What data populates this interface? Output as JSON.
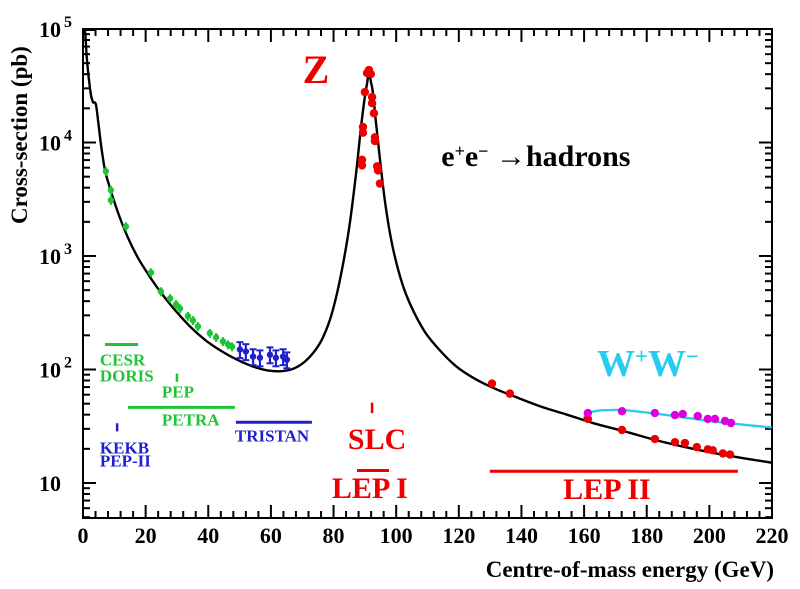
{
  "chart_data": {
    "type": "line",
    "title": "",
    "xlabel": "Centre-of-mass energy (GeV)",
    "ylabel": "Cross-section (pb)",
    "x_axis": {
      "min": 0,
      "max": 220,
      "major_step": 20,
      "minor_step": 4,
      "major_labels": [
        "0",
        "20",
        "40",
        "60",
        "80",
        "100",
        "120",
        "140",
        "160",
        "180",
        "200",
        "220"
      ]
    },
    "y_axis": {
      "scale": "log",
      "min": 4.9,
      "max": 100000,
      "decades": [
        {
          "label_base": "10",
          "label_exp": "5",
          "value": 100000
        },
        {
          "label_base": "10",
          "label_exp": "4",
          "value": 10000
        },
        {
          "label_base": "10",
          "label_exp": "3",
          "value": 1000
        },
        {
          "label_base": "10",
          "label_exp": "2",
          "value": 100
        },
        {
          "label_base": "10",
          "label_exp": "",
          "value": 10
        }
      ]
    },
    "colors": {
      "curve": "#000000",
      "red": "#ee0000",
      "green": "#1fc434",
      "blue": "#2121cc",
      "cyan": "#27ccee",
      "magenta": "#dd00dd",
      "background": "#ffffff"
    },
    "series": [
      {
        "name": "hadrons-theory-curve",
        "style": "curve",
        "color_key": "curve",
        "width": 2.4,
        "points": [
          [
            0.64,
            98000
          ],
          [
            0.96,
            72000
          ],
          [
            1.28,
            53000
          ],
          [
            1.9,
            35500
          ],
          [
            2.55,
            26100
          ],
          [
            3.1,
            23000
          ],
          [
            3.25,
            22500
          ],
          [
            4.1,
            21800
          ],
          [
            4.8,
            15800
          ],
          [
            5.75,
            9530
          ],
          [
            7.0,
            5730
          ],
          [
            8.3,
            4230
          ],
          [
            9.6,
            3240
          ],
          [
            11.8,
            2160
          ],
          [
            14.4,
            1440
          ],
          [
            17.6,
            958
          ],
          [
            21.4,
            652
          ],
          [
            25.5,
            452
          ],
          [
            30.0,
            319
          ],
          [
            34.8,
            230
          ],
          [
            39.6,
            177
          ],
          [
            44.4,
            144
          ],
          [
            49.2,
            122
          ],
          [
            54.0,
            107
          ],
          [
            58.7,
            98.4
          ],
          [
            62.9,
            96.5
          ],
          [
            66.7,
            100.5
          ],
          [
            70.2,
            113.6
          ],
          [
            73.4,
            139
          ],
          [
            76.3,
            184
          ],
          [
            78.9,
            277
          ],
          [
            81.1,
            468
          ],
          [
            83.3,
            932
          ],
          [
            85.2,
            1940
          ],
          [
            87.2,
            5370
          ],
          [
            88.8,
            13900
          ],
          [
            90.0,
            25500
          ],
          [
            90.7,
            33200
          ],
          [
            91.3,
            41500
          ],
          [
            91.9,
            34600
          ],
          [
            92.6,
            27200
          ],
          [
            93.5,
            15500
          ],
          [
            94.8,
            7200
          ],
          [
            96.4,
            3060
          ],
          [
            98.0,
            1600
          ],
          [
            99.9,
            905
          ],
          [
            102.5,
            514
          ],
          [
            105.7,
            319
          ],
          [
            109.5,
            208
          ],
          [
            114.0,
            147
          ],
          [
            119.1,
            107
          ],
          [
            124.8,
            83.8
          ],
          [
            131.2,
            68.4
          ],
          [
            138.2,
            57.2
          ],
          [
            145.9,
            47.5
          ],
          [
            154.2,
            40.3
          ],
          [
            163.1,
            33.6
          ],
          [
            172.7,
            28.6
          ],
          [
            182.9,
            23.9
          ],
          [
            193.7,
            20.3
          ],
          [
            204.6,
            17.7
          ],
          [
            220,
            15.1
          ]
        ]
      },
      {
        "name": "ww-theory-curve",
        "style": "curve",
        "color_key": "cyan",
        "width": 2.4,
        "points": [
          [
            160.0,
            36.5
          ],
          [
            160.3,
            38.9
          ],
          [
            161.5,
            41.5
          ],
          [
            164.0,
            43.2
          ],
          [
            168.0,
            43.9
          ],
          [
            172.0,
            43.9
          ],
          [
            176.2,
            42.9
          ],
          [
            184.2,
            40.4
          ],
          [
            193.7,
            37.2
          ],
          [
            203.3,
            34.3
          ],
          [
            212.9,
            32.2
          ],
          [
            219.9,
            30.9
          ]
        ]
      },
      {
        "name": "low-energy-data-green",
        "style": "points",
        "color_key": "green",
        "marker_r": 3.2,
        "err_frac": 0.09,
        "caps": false,
        "points": [
          [
            7.3,
            5580
          ],
          [
            8.9,
            3800
          ],
          [
            8.9,
            3100
          ],
          [
            13.7,
            1820
          ],
          [
            21.7,
            715
          ],
          [
            24.9,
            486
          ],
          [
            27.8,
            423
          ],
          [
            29.7,
            375
          ],
          [
            31.0,
            345
          ],
          [
            33.5,
            295
          ],
          [
            35.1,
            271
          ],
          [
            36.7,
            240
          ],
          [
            40.5,
            209
          ],
          [
            42.5,
            192
          ],
          [
            44.7,
            177
          ],
          [
            46.3,
            166
          ],
          [
            47.6,
            159
          ]
        ]
      },
      {
        "name": "tristan-data-blue",
        "style": "points",
        "color_key": "blue",
        "marker_r": 3.2,
        "err_frac": 0.16,
        "caps": true,
        "points": [
          [
            50.1,
            150
          ],
          [
            52.0,
            144
          ],
          [
            54.3,
            130
          ],
          [
            56.5,
            127
          ],
          [
            59.7,
            135
          ],
          [
            61.6,
            127
          ],
          [
            63.9,
            130
          ],
          [
            65.1,
            122
          ]
        ]
      },
      {
        "name": "lep-slc-data-red",
        "style": "points",
        "color_key": "red",
        "marker_r": 4.2,
        "err_frac": 0,
        "caps": false,
        "points": [
          [
            89.1,
            7030
          ],
          [
            89.1,
            6280
          ],
          [
            89.4,
            13700
          ],
          [
            89.4,
            12200
          ],
          [
            90.0,
            27800
          ],
          [
            90.7,
            40900
          ],
          [
            91.3,
            43500
          ],
          [
            91.9,
            40100
          ],
          [
            92.3,
            25100
          ],
          [
            92.3,
            22200
          ],
          [
            92.9,
            18100
          ],
          [
            93.2,
            11100
          ],
          [
            93.2,
            10300
          ],
          [
            93.9,
            6160
          ],
          [
            94.2,
            5680
          ],
          [
            94.8,
            4350
          ],
          [
            130.6,
            75.2
          ],
          [
            136.3,
            61.3
          ],
          [
            161.2,
            36.7
          ],
          [
            172.1,
            29.3
          ],
          [
            182.6,
            24.4
          ],
          [
            189.0,
            22.9
          ],
          [
            192.2,
            22.5
          ],
          [
            196.0,
            20.7
          ],
          [
            199.5,
            19.8
          ],
          [
            201.1,
            19.4
          ],
          [
            204.3,
            18.2
          ],
          [
            206.6,
            17.8
          ]
        ]
      },
      {
        "name": "ww-data-magenta",
        "style": "points",
        "color_key": "magenta",
        "marker_r": 4.2,
        "err_frac": 0,
        "caps": false,
        "points": [
          [
            161.2,
            41.3
          ],
          [
            172.1,
            42.9
          ],
          [
            182.6,
            41.3
          ],
          [
            189.0,
            39.7
          ],
          [
            191.5,
            40.5
          ],
          [
            196.3,
            38.9
          ],
          [
            199.5,
            36.7
          ],
          [
            201.8,
            36.7
          ],
          [
            205.0,
            35.2
          ],
          [
            206.9,
            33.8
          ]
        ]
      }
    ],
    "range_markers": [
      {
        "name": "cesr-doris-range-line",
        "color_key": "green",
        "kind": "hline",
        "e1": 7.0,
        "e2": 17.6,
        "sigma": 166
      },
      {
        "name": "pep-marker-tick",
        "color_key": "green",
        "kind": "vtick",
        "e": 30.0,
        "sigma1": 92,
        "sigma2": 78
      },
      {
        "name": "petra-range-line",
        "color_key": "green",
        "kind": "hline",
        "e1": 14.4,
        "e2": 48.5,
        "sigma": 46.4
      },
      {
        "name": "tristan-range-line",
        "color_key": "blue",
        "kind": "hline",
        "e1": 48.8,
        "e2": 73.1,
        "sigma": 34.3
      },
      {
        "name": "kekb-pep2-marker-tick",
        "color_key": "blue",
        "kind": "vtick",
        "e": 10.9,
        "sigma1": 33.6,
        "sigma2": 28.5
      },
      {
        "name": "slc-marker-tick",
        "color_key": "red",
        "kind": "vtick",
        "e": 92.3,
        "sigma1": 51.1,
        "sigma2": 41.3
      },
      {
        "name": "lep1-range-line",
        "color_key": "red",
        "kind": "hline",
        "e1": 87.5,
        "e2": 97.7,
        "sigma": 12.9
      },
      {
        "name": "lep2-range-line",
        "color_key": "red",
        "kind": "hline",
        "e1": 129.9,
        "e2": 209.1,
        "sigma": 12.7
      }
    ],
    "annotations": [
      {
        "name": "z-resonance-label",
        "color_key": "red",
        "size": 40,
        "halign": "center",
        "e": 74.4,
        "sigma": 43600,
        "parts": [
          {
            "t": "Z"
          }
        ]
      },
      {
        "name": "process-label",
        "color_key": "curve",
        "size": 30,
        "halign": "center",
        "e": 144.6,
        "sigma": 7450,
        "parts": [
          {
            "t": "e"
          },
          {
            "t": "+",
            "sup": true
          },
          {
            "t": "e"
          },
          {
            "t": "−",
            "sup": true
          },
          {
            "t": " →hadrons"
          }
        ]
      },
      {
        "name": "ww-label",
        "color_key": "cyan",
        "size": 38,
        "halign": "center",
        "e": 180.4,
        "sigma": 112,
        "parts": [
          {
            "t": "W"
          },
          {
            "t": "+",
            "sup": true
          },
          {
            "t": "W"
          },
          {
            "t": "−",
            "sup": true
          }
        ]
      },
      {
        "name": "cesr-label",
        "color_key": "green",
        "size": 17,
        "halign": "left",
        "e": 5.4,
        "sigma": 121,
        "parts": [
          {
            "t": "CESR"
          }
        ]
      },
      {
        "name": "doris-label",
        "color_key": "green",
        "size": 17,
        "halign": "left",
        "e": 5.4,
        "sigma": 87.6,
        "parts": [
          {
            "t": "DORIS"
          }
        ]
      },
      {
        "name": "pep-label",
        "color_key": "green",
        "size": 17,
        "halign": "left",
        "e": 25.2,
        "sigma": 63.4,
        "parts": [
          {
            "t": "PEP"
          }
        ]
      },
      {
        "name": "petra-label",
        "color_key": "green",
        "size": 17,
        "halign": "left",
        "e": 25.2,
        "sigma": 36.1,
        "parts": [
          {
            "t": "PETRA"
          }
        ]
      },
      {
        "name": "tristan-label",
        "color_key": "blue",
        "size": 17,
        "halign": "left",
        "e": 48.5,
        "sigma": 26.1,
        "parts": [
          {
            "t": "TRISTAN"
          }
        ]
      },
      {
        "name": "kekb-label",
        "color_key": "blue",
        "size": 17,
        "halign": "left",
        "e": 5.4,
        "sigma": 20.5,
        "parts": [
          {
            "t": "KEKB"
          }
        ]
      },
      {
        "name": "pep2-label",
        "color_key": "blue",
        "size": 17,
        "halign": "left",
        "e": 5.4,
        "sigma": 15.5,
        "parts": [
          {
            "t": "PEP-II"
          }
        ]
      },
      {
        "name": "slc-label",
        "color_key": "red",
        "size": 30,
        "halign": "center",
        "e": 93.9,
        "sigma": 23.7,
        "parts": [
          {
            "t": "SLC"
          }
        ]
      },
      {
        "name": "lep1-label",
        "color_key": "red",
        "size": 30,
        "halign": "center",
        "e": 91.6,
        "sigma": 8.9,
        "parts": [
          {
            "t": "LEP I"
          }
        ]
      },
      {
        "name": "lep2-label",
        "color_key": "red",
        "size": 30,
        "halign": "center",
        "e": 167.3,
        "sigma": 8.75,
        "parts": [
          {
            "t": "LEP II"
          }
        ]
      }
    ]
  }
}
